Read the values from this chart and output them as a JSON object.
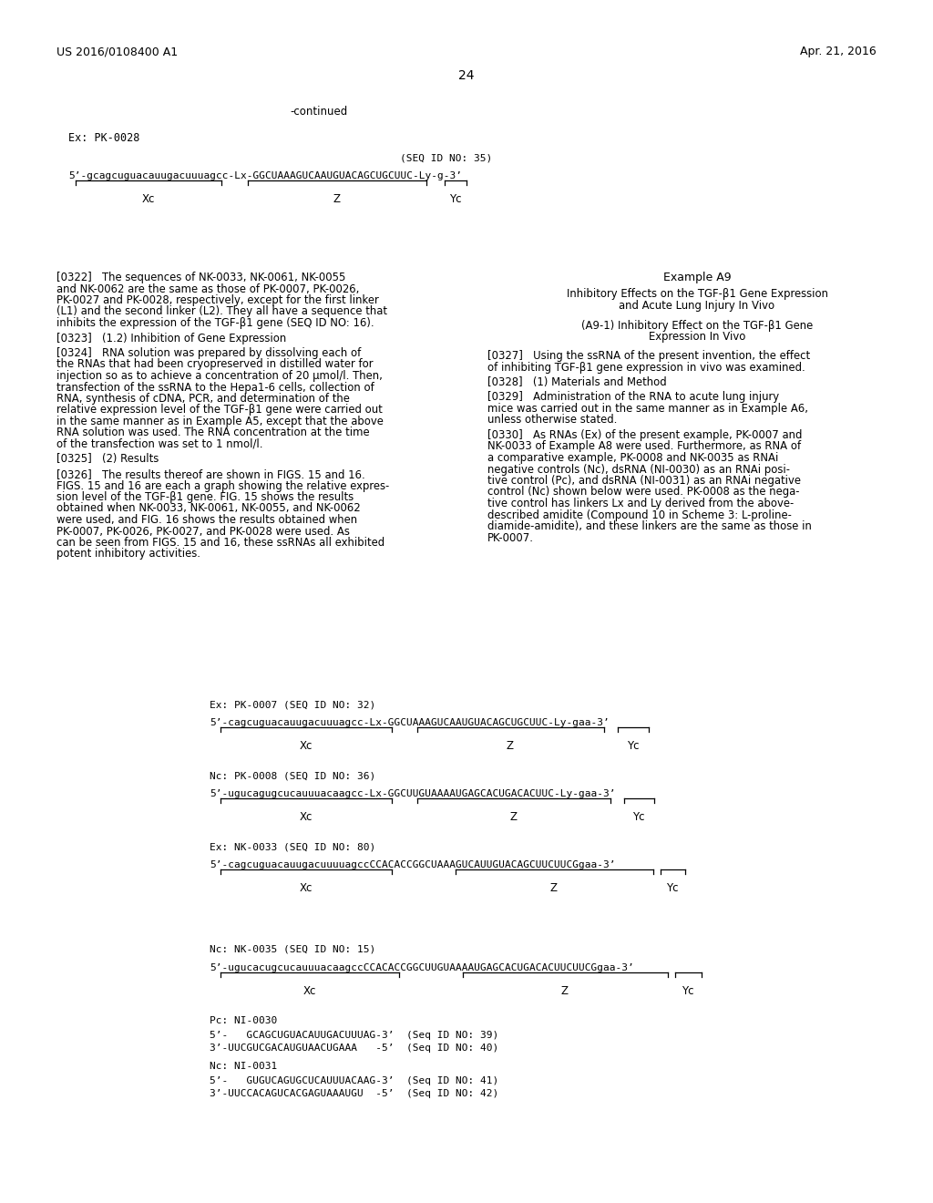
{
  "background_color": "#ffffff",
  "header_left": "US 2016/0108400 A1",
  "header_right": "Apr. 21, 2016",
  "page_number": "24",
  "continued": "-continued",
  "ex_pk0028_label": "Ex: PK-0028",
  "seq_id_35": "(SEQ ID NO: 35)",
  "seq_pk0028": "5’-gcagcuguacauugacuuuagcc-Lx-GGCUAAAGUCAAUGUACAGCUGCUUC-Ly-g-3’",
  "seq_pk0028_xc": "Xc",
  "seq_pk0028_z": "Z",
  "seq_pk0028_yc": "Yc",
  "para_322": "[0322]   The sequences of NK-0033, NK-0061, NK-0055\nand NK-0062 are the same as those of PK-0007, PK-0026,\nPK-0027 and PK-0028, respectively, except for the first linker\n(L1) and the second linker (L2). They all have a sequence that\ninhibits the expression of the TGF-β1 gene (SEQ ID NO: 16).",
  "para_323": "[0323]   (1.2) Inhibition of Gene Expression",
  "para_324": "[0324]   RNA solution was prepared by dissolving each of\nthe RNAs that had been cryopreserved in distilled water for\ninjection so as to achieve a concentration of 20 μmol/l. Then,\ntransfection of the ssRNA to the Hepa1-6 cells, collection of\nRNA, synthesis of cDNA, PCR, and determination of the\nrelative expression level of the TGF-β1 gene were carried out\nin the same manner as in Example A5, except that the above\nRNA solution was used. The RNA concentration at the time\nof the transfection was set to 1 nmol/l.",
  "para_325": "[0325]   (2) Results",
  "para_326": "[0326]   The results thereof are shown in FIGS. 15 and 16.\nFIGS. 15 and 16 are each a graph showing the relative expres-\nsion level of the TGF-β1 gene. FIG. 15 shows the results\nobtained when NK-0033, NK-0061, NK-0055, and NK-0062\nwere used, and FIG. 16 shows the results obtained when\nPK-0007, PK-0026, PK-0027, and PK-0028 were used. As\ncan be seen from FIGS. 15 and 16, these ssRNAs all exhibited\npotent inhibitory activities.",
  "example_a9_title": "Example A9",
  "example_a9_sub1": "Inhibitory Effects on the TGF-β1 Gene Expression\nand Acute Lung Injury In Vivo",
  "example_a9_sub2": "(A9-1) Inhibitory Effect on the TGF-β1 Gene\nExpression In Vivo",
  "para_327": "[0327]   Using the ssRNA of the present invention, the effect\nof inhibiting TGF-β1 gene expression in vivo was examined.",
  "para_328": "[0328]   (1) Materials and Method",
  "para_329": "[0329]   Administration of the RNA to acute lung injury\nmice was carried out in the same manner as in Example A6,\nunless otherwise stated.",
  "para_330": "[0330]   As RNAs (Ex) of the present example, PK-0007 and\nNK-0033 of Example A8 were used. Furthermore, as RNA of\na comparative example, PK-0008 and NK-0035 as RNAi\nnegative controls (Nc), dsRNA (NI-0030) as an RNAi posi-\ntive control (Pc), and dsRNA (NI-0031) as an RNAi negative\ncontrol (Nc) shown below were used. PK-0008 as the nega-\ntive control has linkers Lx and Ly derived from the above-\ndescribed amidite (Compound 10 in Scheme 3: L-proline-\ndiamide-amidite), and these linkers are the same as those in\nPK-0007.",
  "ex_pk0007_label": "Ex: PK-0007 (SEQ ID NO: 32)",
  "seq_pk0007": "5’-cagcuguacauugacuuuagcc-Lx-GGCUAAAGUCAAUGUACAGCUGCUUC-Ly-gaa-3’",
  "nc_pk0008_label": "Nc: PK-0008 (SEQ ID NO: 36)",
  "seq_pk0008": "5’-ugucagugcucauuuacaagcc-Lx-GGCUUGUAAAAUGAGCACUGACACUUC-Ly-gaa-3’",
  "ex_nk0033_label": "Ex: NK-0033 (SEQ ID NO: 80)",
  "seq_nk0033": "5’-cagcuguacauugacuuuuagccCCACACCGGCUAAAGUCAUUGUACAGCUUCUUCGgaa-3’",
  "nc_nk0035_label": "Nc: NK-0035 (SEQ ID NO: 15)",
  "seq_nk0035": "5’-ugucacugcucauuuacaagccCCACACCGGCUUGUAAAAUGAGCACUGACACUUCUUCGgaa-3’",
  "pc_ni0030_label": "Pc: NI-0030",
  "pc_ni0030_line1": "5’-   GCAGCUGUACAUUGACUUUAG-3’  (Seq ID NO: 39)",
  "pc_ni0030_line2": "3’-UUCGUCGACAUGUAACUGAAA   -5’  (Seq ID NO: 40)",
  "nc_ni0031_label": "Nc: NI-0031",
  "nc_ni0031_line1": "5’-   GUGUCAGUGCUCAUUUACAAG-3’  (Seq ID NO: 41)",
  "nc_ni0031_line2": "3’-UUCCACAGUCACGAGUAAAUGU  -5’  (Seq ID NO: 42)"
}
